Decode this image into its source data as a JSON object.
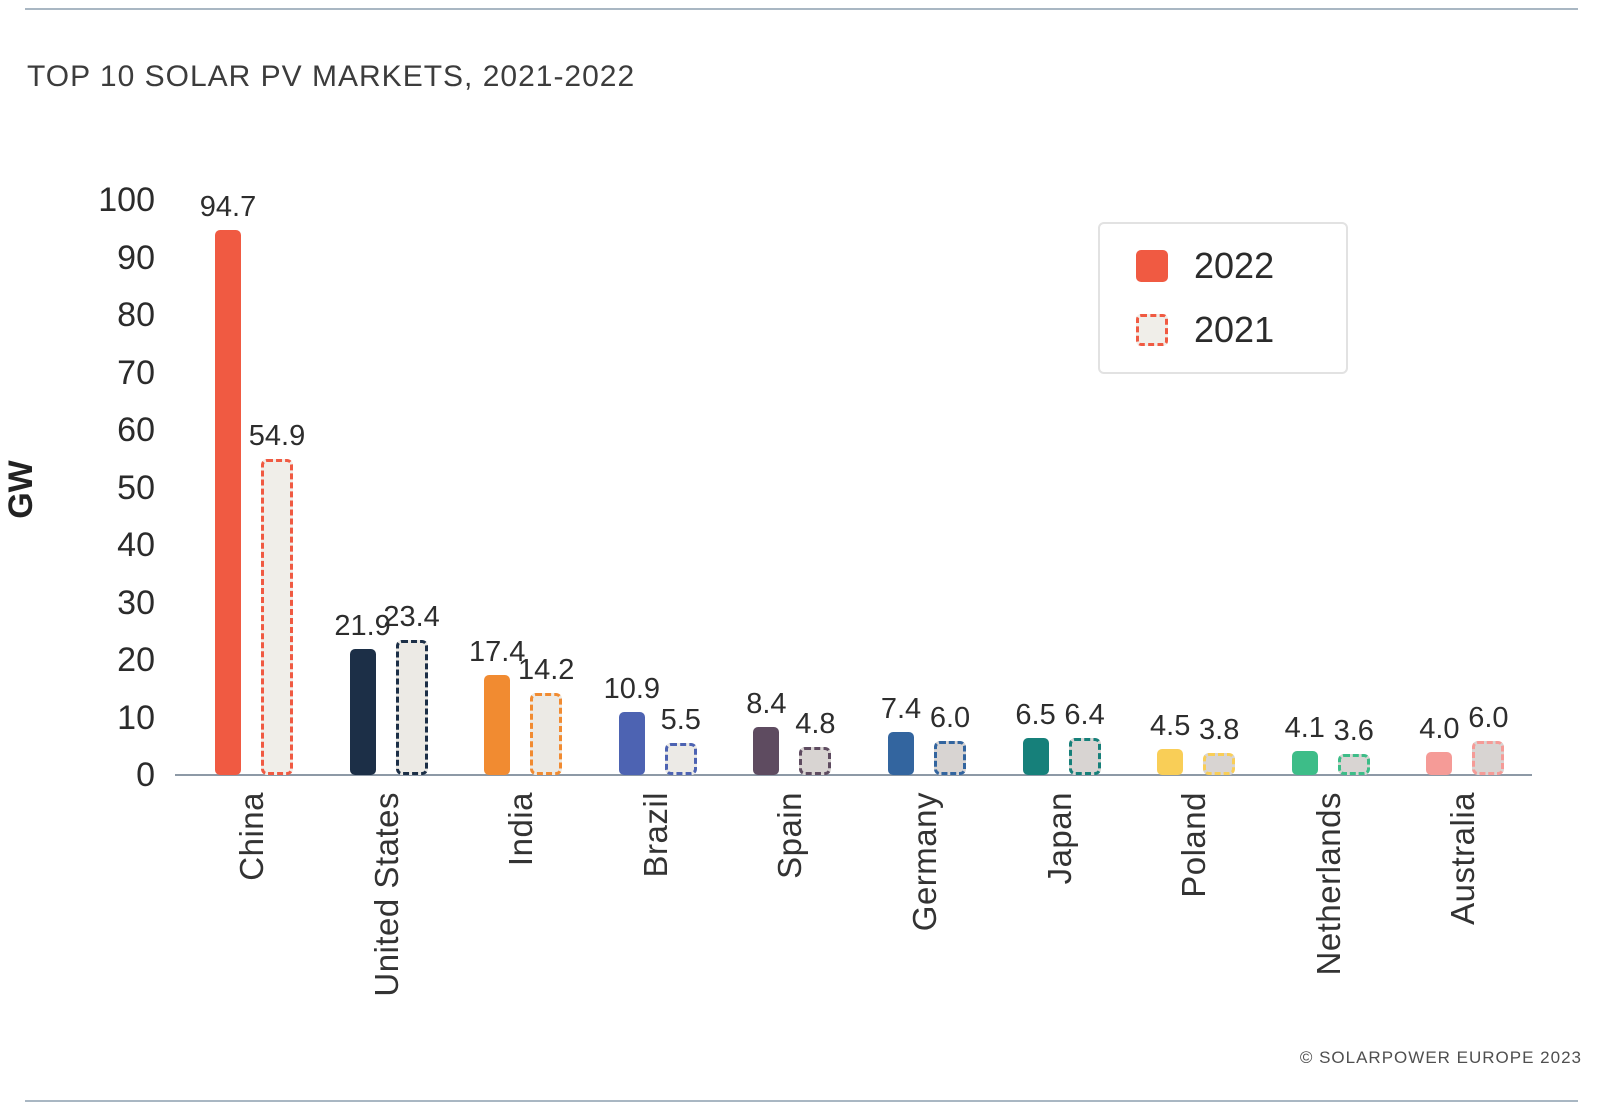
{
  "page": {
    "title": "TOP 10 SOLAR PV MARKETS, 2021-2022",
    "footer": "© SOLARPOWER EUROPE 2023"
  },
  "chart_data": {
    "type": "bar",
    "title": "TOP 10 SOLAR PV MARKETS, 2021-2022",
    "xlabel": "",
    "ylabel": "GW",
    "ylim": [
      0,
      100
    ],
    "yticks": [
      0,
      10,
      20,
      30,
      40,
      50,
      60,
      70,
      80,
      90,
      100
    ],
    "grid": false,
    "legend_position": "top-right",
    "categories": [
      "China",
      "United States",
      "India",
      "Brazil",
      "Spain",
      "Germany",
      "Japan",
      "Poland",
      "Netherlands",
      "Australia"
    ],
    "series": [
      {
        "name": "2022",
        "style": "solid",
        "values": [
          94.7,
          21.9,
          17.4,
          10.9,
          8.4,
          7.4,
          6.5,
          4.5,
          4.1,
          4.0
        ]
      },
      {
        "name": "2021",
        "style": "dashed",
        "values": [
          54.9,
          23.4,
          14.2,
          5.5,
          4.8,
          6.0,
          6.4,
          3.8,
          3.6,
          6.0
        ]
      }
    ],
    "bar_colors": [
      "#F05A42",
      "#1C2F47",
      "#F18B31",
      "#4D63B2",
      "#5E4B60",
      "#33659F",
      "#16807A",
      "#F9CE57",
      "#3DBD88",
      "#F59B97"
    ],
    "fill_2021": [
      "#F0EEE9",
      "#ECEAE5",
      "#ECEAE5",
      "#ECEAE6",
      "#D8D4D2",
      "#D8D4D2",
      "#D8D4D2",
      "#D8D4D2",
      "#D8D4D2",
      "#D8D4D2"
    ],
    "legend": {
      "item_2022": "2022",
      "item_2021": "2021",
      "swatch_2022_color": "#F05A42",
      "swatch_2021_border": "#F05A42",
      "swatch_2021_fill": "#F0EEE9"
    }
  }
}
